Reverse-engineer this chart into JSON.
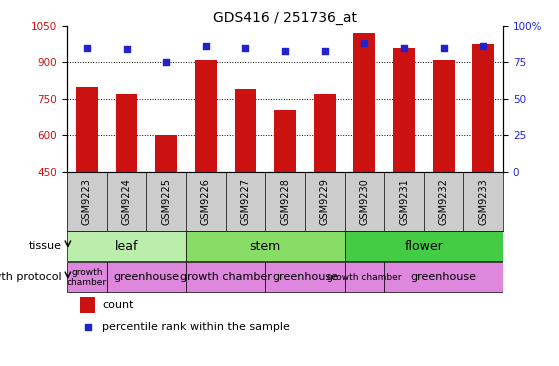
{
  "title": "GDS416 / 251736_at",
  "samples": [
    "GSM9223",
    "GSM9224",
    "GSM9225",
    "GSM9226",
    "GSM9227",
    "GSM9228",
    "GSM9229",
    "GSM9230",
    "GSM9231",
    "GSM9232",
    "GSM9233"
  ],
  "counts": [
    800,
    770,
    600,
    910,
    790,
    705,
    770,
    1020,
    960,
    910,
    975
  ],
  "percentiles": [
    85,
    84,
    75,
    86,
    85,
    83,
    83,
    88,
    85,
    85,
    86
  ],
  "ylim_left": [
    450,
    1050
  ],
  "ylim_right": [
    0,
    100
  ],
  "yticks_left": [
    450,
    600,
    750,
    900,
    1050
  ],
  "yticks_right": [
    0,
    25,
    50,
    75,
    100
  ],
  "grid_values": [
    600,
    750,
    900
  ],
  "bar_color": "#cc1111",
  "scatter_color": "#2222cc",
  "xticklabel_bg": "#cccccc",
  "tissue_groups": [
    {
      "label": "leaf",
      "start": 0,
      "end": 3,
      "color": "#bbeeaa"
    },
    {
      "label": "stem",
      "start": 3,
      "end": 7,
      "color": "#88dd66"
    },
    {
      "label": "flower",
      "start": 7,
      "end": 11,
      "color": "#44cc44"
    }
  ],
  "growth_protocol_groups": [
    {
      "label": "growth\nchamber",
      "start": 0,
      "end": 1,
      "color": "#dd88dd"
    },
    {
      "label": "greenhouse",
      "start": 1,
      "end": 3,
      "color": "#dd88dd"
    },
    {
      "label": "growth chamber",
      "start": 3,
      "end": 5,
      "color": "#dd88dd"
    },
    {
      "label": "greenhouse",
      "start": 5,
      "end": 7,
      "color": "#dd88dd"
    },
    {
      "label": "growth chamber",
      "start": 7,
      "end": 8,
      "color": "#dd88dd"
    },
    {
      "label": "greenhouse",
      "start": 8,
      "end": 11,
      "color": "#dd88dd"
    }
  ],
  "tissue_label": "tissue",
  "growth_label": "growth protocol",
  "legend_count_label": "count",
  "legend_pct_label": "percentile rank within the sample"
}
